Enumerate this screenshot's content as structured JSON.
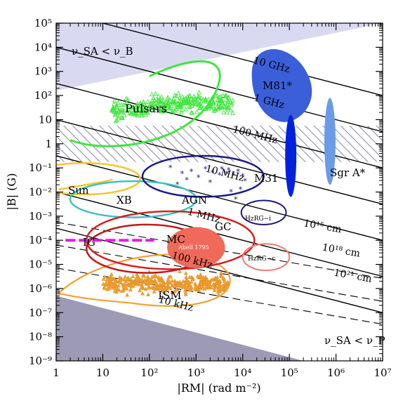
{
  "chart_data": {
    "type": "scatter",
    "xlabel": "|RM| (rad m⁻²)",
    "ylabel": "|B| (G)",
    "x_scale": "log",
    "y_scale": "log",
    "xlim": [
      1,
      10000000
    ],
    "ylim": [
      1e-09,
      100000
    ],
    "x_ticks": [
      "1",
      "10",
      "10²",
      "10³",
      "10⁴",
      "10⁵",
      "10⁶",
      "10⁷"
    ],
    "y_ticks": [
      "10⁻⁹",
      "10⁻⁸",
      "10⁻⁷",
      "10⁻⁶",
      "10⁻⁵",
      "10⁻⁴",
      "10⁻³",
      "10⁻²",
      "10⁻¹",
      "1",
      "10",
      "10²",
      "10³",
      "10⁴",
      "10⁵"
    ],
    "grid": false,
    "regions": [
      {
        "label": "ν_SA < ν_B",
        "color": "#d9daf2"
      },
      {
        "label": "ν_SA < ν_P",
        "color": "#9c9ab5"
      }
    ],
    "frequency_lines": [
      {
        "label": "10 GHz"
      },
      {
        "label": "1 GHz"
      },
      {
        "label": "100 MHz"
      },
      {
        "label": "10 MHz"
      },
      {
        "label": "1 MHz"
      },
      {
        "label": "100 kHz"
      },
      {
        "label": "10 kHz"
      }
    ],
    "size_lines": [
      {
        "label": "10¹⁵ cm"
      },
      {
        "label": "10¹⁸ cm"
      },
      {
        "label": "10²¹ cm"
      }
    ],
    "sources": [
      {
        "label": "Pulsars",
        "color": "#3ee63e"
      },
      {
        "label": "Sun",
        "color": "#f5c530"
      },
      {
        "label": "XB",
        "color": "#3cc0c8"
      },
      {
        "label": "AGN",
        "color": "#1a1a8a"
      },
      {
        "label": "M81*",
        "color": "#3a5fd9"
      },
      {
        "label": "Sgr A*",
        "color": "#6b9be8"
      },
      {
        "label": "M31",
        "color": "#0022dd"
      },
      {
        "label": "GC",
        "color": "#d42020"
      },
      {
        "label": "MC",
        "color": "#c01818"
      },
      {
        "label": "Abell 1795",
        "color": "#ef6a5a"
      },
      {
        "label": "IG",
        "color": "#e020e0"
      },
      {
        "label": "HzRG−i",
        "color": "#1a1a7a"
      },
      {
        "label": "HzRG−c",
        "color": "#f07a70"
      },
      {
        "label": "ISM",
        "color": "#f2a030"
      }
    ]
  }
}
